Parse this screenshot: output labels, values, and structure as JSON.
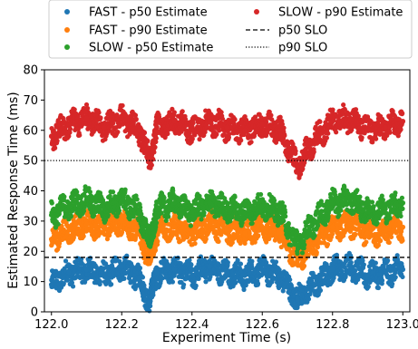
{
  "chart_data": {
    "type": "scatter",
    "xlabel": "Experiment Time (s)",
    "ylabel": "Estimated Response Time (ms)",
    "xlim": [
      121.98,
      123.02
    ],
    "ylim": [
      0,
      80
    ],
    "xticks": [
      122.0,
      122.2,
      122.4,
      122.6,
      122.8,
      123.0
    ],
    "xtick_labels": [
      "122.0",
      "122.2",
      "122.4",
      "122.6",
      "122.8",
      "123.0"
    ],
    "yticks": [
      0,
      10,
      20,
      30,
      40,
      50,
      60,
      70,
      80
    ],
    "ytick_labels": [
      "0",
      "10",
      "20",
      "30",
      "40",
      "50",
      "60",
      "70",
      "80"
    ],
    "grid": false,
    "legend_position": "top-center, above plot, 2 columns",
    "series": [
      {
        "name": "FAST - p50 Estimate",
        "color": "#1f77b4",
        "x": [
          122.0,
          122.05,
          122.1,
          122.15,
          122.2,
          122.25,
          122.28,
          122.3,
          122.35,
          122.4,
          122.45,
          122.5,
          122.55,
          122.6,
          122.65,
          122.7,
          122.75,
          122.8,
          122.85,
          122.9,
          122.95,
          123.0
        ],
        "values": [
          9,
          13,
          14,
          12,
          15,
          11,
          3,
          13,
          14,
          12,
          15,
          13,
          12,
          14,
          12,
          4,
          9,
          14,
          15,
          12,
          13,
          14
        ]
      },
      {
        "name": "FAST - p90 Estimate",
        "color": "#ff7f0e",
        "x": [
          122.0,
          122.05,
          122.1,
          122.15,
          122.2,
          122.25,
          122.28,
          122.3,
          122.35,
          122.4,
          122.45,
          122.5,
          122.55,
          122.6,
          122.65,
          122.7,
          122.75,
          122.8,
          122.85,
          122.9,
          122.95,
          123.0
        ],
        "values": [
          24,
          27,
          29,
          28,
          30,
          26,
          17,
          27,
          28,
          26,
          29,
          27,
          26,
          28,
          26,
          17,
          23,
          28,
          29,
          26,
          27,
          28
        ]
      },
      {
        "name": "SLOW - p50 Estimate",
        "color": "#2ca02c",
        "x": [
          122.0,
          122.05,
          122.1,
          122.15,
          122.2,
          122.25,
          122.28,
          122.3,
          122.35,
          122.4,
          122.45,
          122.5,
          122.55,
          122.6,
          122.65,
          122.7,
          122.75,
          122.8,
          122.85,
          122.9,
          122.95,
          123.0
        ],
        "values": [
          32,
          35,
          37,
          34,
          37,
          33,
          23,
          34,
          36,
          33,
          36,
          34,
          33,
          35,
          33,
          22,
          30,
          36,
          37,
          33,
          34,
          36
        ]
      },
      {
        "name": "SLOW - p90 Estimate",
        "color": "#d62728",
        "x": [
          122.0,
          122.05,
          122.1,
          122.15,
          122.2,
          122.25,
          122.28,
          122.3,
          122.35,
          122.4,
          122.45,
          122.5,
          122.55,
          122.6,
          122.65,
          122.7,
          122.75,
          122.8,
          122.85,
          122.9,
          122.95,
          123.0
        ],
        "values": [
          58,
          62,
          64,
          61,
          64,
          60,
          50,
          61,
          63,
          60,
          63,
          61,
          60,
          62,
          60,
          48,
          57,
          63,
          64,
          60,
          61,
          63
        ]
      }
    ],
    "reference_lines": [
      {
        "name": "p50 SLO",
        "y": 18,
        "style": "dashed",
        "color": "#000000"
      },
      {
        "name": "p90 SLO",
        "y": 50,
        "style": "dotted",
        "color": "#000000"
      }
    ],
    "legend": [
      {
        "label": "FAST - p50 Estimate",
        "marker": "dot",
        "color": "#1f77b4"
      },
      {
        "label": "FAST - p90 Estimate",
        "marker": "dot",
        "color": "#ff7f0e"
      },
      {
        "label": "SLOW - p50 Estimate",
        "marker": "dot",
        "color": "#2ca02c"
      },
      {
        "label": "SLOW - p90 Estimate",
        "marker": "dot",
        "color": "#d62728"
      },
      {
        "label": "p50 SLO",
        "marker": "dashed",
        "color": "#000000"
      },
      {
        "label": "p90 SLO",
        "marker": "dotted",
        "color": "#000000"
      }
    ]
  }
}
